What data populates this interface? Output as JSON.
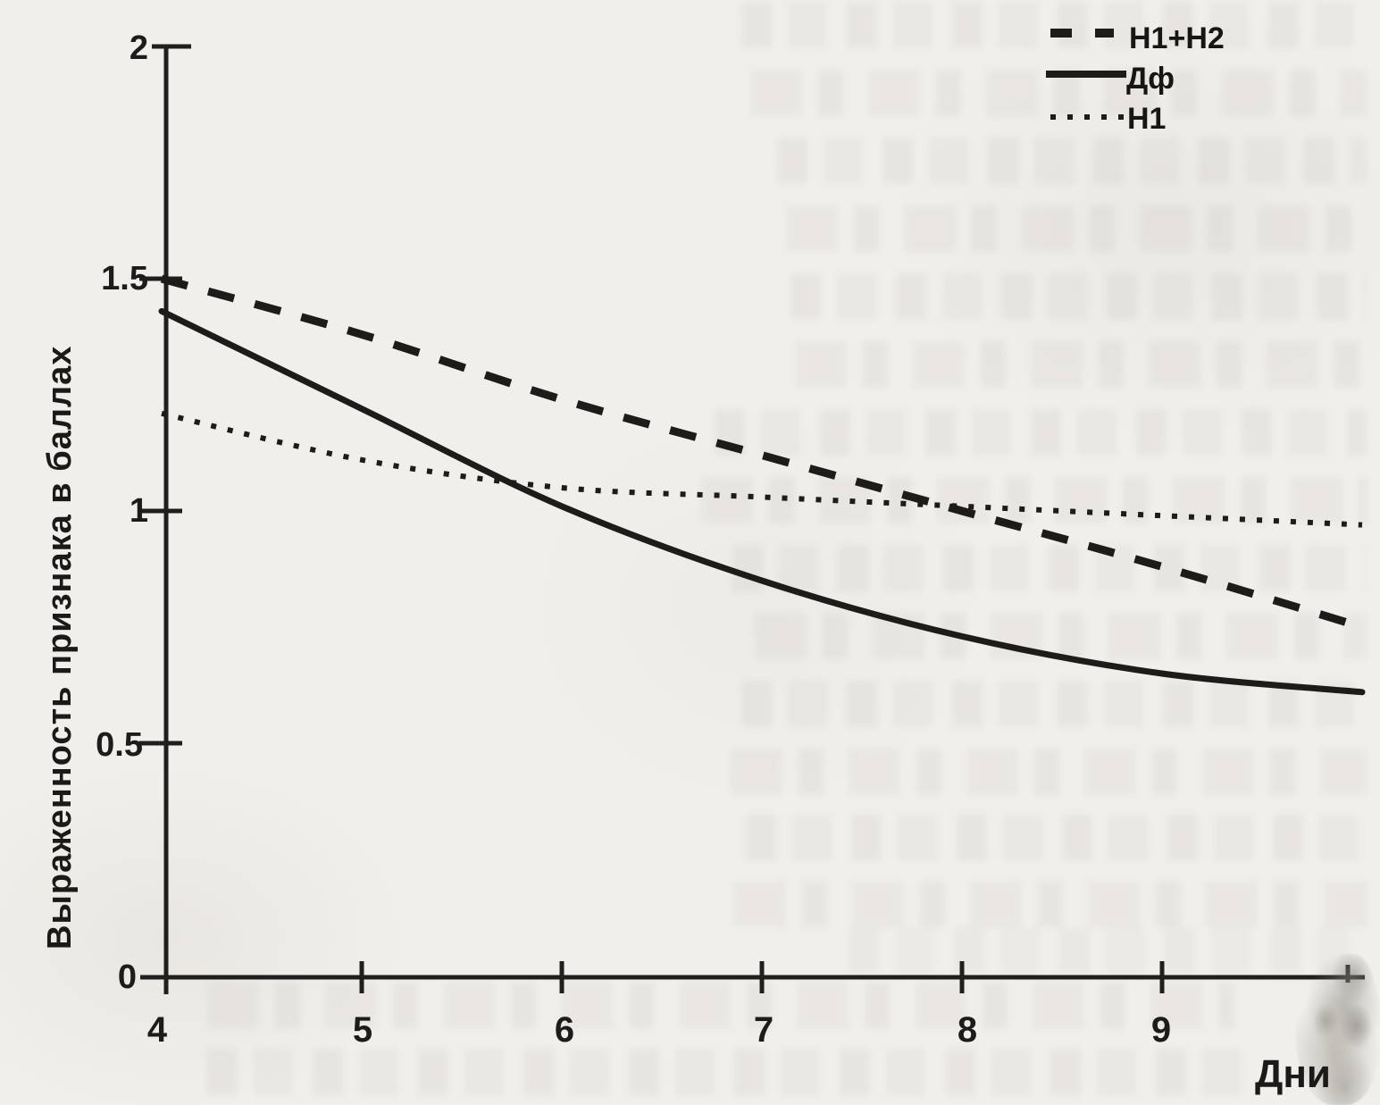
{
  "figure": {
    "paper_color": "#f1efeb",
    "ink_color": "#1d1c1a"
  },
  "axis": {
    "y_label": "Выраженность признака в баллах",
    "x_label": "Дни",
    "y_tick_labels": [
      "2",
      "1.5",
      "1",
      "0.5",
      "0"
    ],
    "x_tick_labels": [
      "4",
      "5",
      "6",
      "7",
      "8",
      "9"
    ]
  },
  "legend": {
    "items": [
      {
        "label": "Н1+Н2",
        "style": "dashed"
      },
      {
        "label": "Дф",
        "style": "solid"
      },
      {
        "label": "Н1",
        "style": "dotted"
      }
    ]
  },
  "chart_data": {
    "type": "line",
    "title": "",
    "xlabel": "Дни",
    "ylabel": "Выраженность признака в баллах",
    "x": [
      4,
      5,
      6,
      7,
      8,
      9,
      10
    ],
    "series": [
      {
        "name": "Н1+Н2",
        "style": "dashed",
        "values": [
          1.5,
          1.38,
          1.24,
          1.12,
          1.0,
          0.88,
          0.75
        ]
      },
      {
        "name": "Дф",
        "style": "solid",
        "values": [
          1.43,
          1.22,
          1.01,
          0.85,
          0.73,
          0.65,
          0.61
        ]
      },
      {
        "name": "Н1",
        "style": "dotted",
        "values": [
          1.21,
          1.11,
          1.05,
          1.03,
          1.01,
          0.99,
          0.97
        ]
      }
    ],
    "xlim": [
      4,
      10.05
    ],
    "ylim": [
      0,
      2
    ],
    "x_ticks": [
      4,
      5,
      6,
      7,
      8,
      9
    ],
    "y_ticks": [
      0,
      0.5,
      1,
      1.5,
      2
    ],
    "grid": false,
    "legend_position": "top-right"
  }
}
